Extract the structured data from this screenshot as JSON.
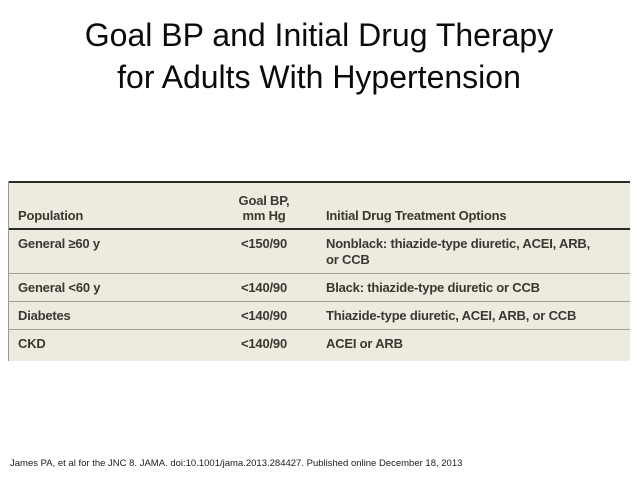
{
  "title": {
    "line1": "Goal BP and Initial Drug Therapy",
    "line2": "for Adults With Hypertension"
  },
  "table": {
    "headers": {
      "population": "Population",
      "goal_bp_line1": "Goal BP,",
      "goal_bp_line2": "mm Hg",
      "treatment": "Initial Drug Treatment Options"
    },
    "rows": [
      {
        "population": "General ≥60 y",
        "goal_bp": "<150/90",
        "treatment": "Nonblack: thiazide-type diuretic, ACEI, ARB, or CCB"
      },
      {
        "population": "General <60 y",
        "goal_bp": "<140/90",
        "treatment": "Black: thiazide-type diuretic or CCB"
      },
      {
        "population": "Diabetes",
        "goal_bp": "<140/90",
        "treatment": "Thiazide-type diuretic, ACEI, ARB, or CCB"
      },
      {
        "population": "CKD",
        "goal_bp": "<140/90",
        "treatment": "ACEI or ARB"
      }
    ]
  },
  "citation": "James PA, et al for the JNC 8. JAMA. doi:10.1001/jama.2013.284427. Published online December 18, 2013",
  "colors": {
    "table_background": "#EDEAE0",
    "heavy_rule": "#2B2A25",
    "row_separator": "#A49F94",
    "table_text": "#3A382F",
    "title_text": "#0B0B0B"
  }
}
